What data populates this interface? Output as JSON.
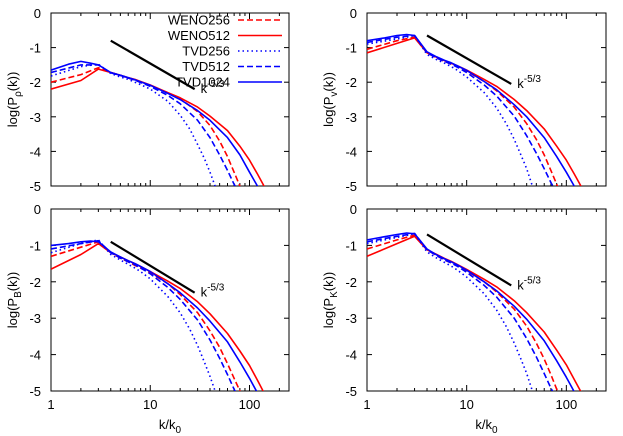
{
  "figure": {
    "legend_position": "top-right of top-left panel",
    "x_axis": {
      "scale": "log",
      "range": [
        1,
        250
      ],
      "ticks": [
        {
          "value": 1,
          "label": "1"
        },
        {
          "value": 10,
          "label": "10"
        },
        {
          "value": 100,
          "label": "100"
        }
      ],
      "label_main": "k/k",
      "label_sub": "0"
    },
    "y_axis": {
      "range": [
        -5,
        0
      ],
      "ticks": [
        0,
        -1,
        -2,
        -3,
        -4,
        -5
      ],
      "tick_labels": [
        "0",
        "-1",
        "-2",
        "-3",
        "-4",
        "-5"
      ]
    },
    "slope_label": {
      "base": "k",
      "exponent": "-5/3"
    },
    "grid": false
  },
  "chart_data": [
    {
      "type": "line",
      "panel": "top-left",
      "ylabel_main": "log(P",
      "ylabel_sub": "ρ",
      "ylabel_end": "(k))",
      "series": [
        {
          "name": "WENO256",
          "color": "#ff0000",
          "dash": "dashed",
          "x": [
            1,
            2,
            3,
            4,
            5,
            6,
            7,
            8,
            10,
            15,
            20,
            30,
            40,
            50,
            60,
            70,
            80,
            90
          ],
          "y": [
            -2.0,
            -1.78,
            -1.58,
            -1.72,
            -1.8,
            -1.88,
            -1.94,
            -2.0,
            -2.1,
            -2.3,
            -2.48,
            -2.85,
            -3.25,
            -3.7,
            -4.15,
            -4.6,
            -5.0,
            -5.3
          ]
        },
        {
          "name": "WENO512",
          "color": "#ff0000",
          "dash": "solid",
          "x": [
            1,
            2,
            3,
            4,
            5,
            6,
            7,
            8,
            10,
            15,
            20,
            30,
            40,
            60,
            80,
            100,
            120,
            140,
            155
          ],
          "y": [
            -2.2,
            -1.95,
            -1.62,
            -1.72,
            -1.8,
            -1.87,
            -1.92,
            -1.98,
            -2.08,
            -2.3,
            -2.45,
            -2.72,
            -2.98,
            -3.4,
            -3.85,
            -4.25,
            -4.65,
            -5.0,
            -5.2
          ]
        },
        {
          "name": "TVD256",
          "color": "#0000ff",
          "dash": "dotted",
          "x": [
            1,
            2,
            3,
            4,
            5,
            6,
            7,
            8,
            10,
            15,
            20,
            25,
            30,
            35,
            40,
            45,
            50
          ],
          "y": [
            -1.82,
            -1.55,
            -1.48,
            -1.75,
            -1.85,
            -1.92,
            -2.0,
            -2.07,
            -2.2,
            -2.55,
            -2.95,
            -3.35,
            -3.8,
            -4.2,
            -4.6,
            -5.0,
            -5.3
          ]
        },
        {
          "name": "TVD512",
          "color": "#0000ff",
          "dash": "dashed",
          "x": [
            1,
            2,
            3,
            4,
            5,
            6,
            7,
            8,
            10,
            15,
            20,
            30,
            40,
            50,
            60,
            70,
            80
          ],
          "y": [
            -1.72,
            -1.5,
            -1.5,
            -1.73,
            -1.8,
            -1.88,
            -1.94,
            -2.01,
            -2.12,
            -2.38,
            -2.62,
            -3.1,
            -3.6,
            -4.1,
            -4.55,
            -4.95,
            -5.2
          ]
        },
        {
          "name": "TVD1024",
          "color": "#0000ff",
          "dash": "solid",
          "x": [
            1,
            1.5,
            2,
            2.5,
            3,
            4,
            5,
            6,
            7,
            8,
            10,
            15,
            20,
            30,
            40,
            60,
            80,
            100,
            120,
            130
          ],
          "y": [
            -1.65,
            -1.48,
            -1.4,
            -1.45,
            -1.5,
            -1.72,
            -1.8,
            -1.87,
            -1.93,
            -1.99,
            -2.09,
            -2.32,
            -2.5,
            -2.82,
            -3.1,
            -3.6,
            -4.1,
            -4.6,
            -5.0,
            -5.2
          ]
        }
      ],
      "slope_line": {
        "x": [
          4,
          28
        ],
        "y": [
          -0.8,
          -2.2
        ]
      }
    },
    {
      "type": "line",
      "panel": "top-right",
      "ylabel_main": "log(P",
      "ylabel_sub": "v",
      "ylabel_end": "(k))",
      "series": [
        {
          "name": "WENO256",
          "color": "#ff0000",
          "dash": "dashed",
          "x": [
            1,
            2,
            3,
            4,
            5,
            6,
            7,
            8,
            10,
            15,
            20,
            30,
            40,
            50,
            60,
            70,
            80,
            90
          ],
          "y": [
            -1.05,
            -0.8,
            -0.7,
            -1.15,
            -1.3,
            -1.4,
            -1.48,
            -1.55,
            -1.68,
            -1.98,
            -2.25,
            -2.72,
            -3.2,
            -3.65,
            -4.1,
            -4.55,
            -4.95,
            -5.3
          ]
        },
        {
          "name": "WENO512",
          "color": "#ff0000",
          "dash": "solid",
          "x": [
            1,
            2,
            3,
            4,
            5,
            6,
            7,
            8,
            10,
            15,
            20,
            30,
            40,
            60,
            80,
            100,
            120,
            140,
            155
          ],
          "y": [
            -1.15,
            -0.88,
            -0.72,
            -1.15,
            -1.28,
            -1.38,
            -1.45,
            -1.52,
            -1.65,
            -1.92,
            -2.12,
            -2.5,
            -2.82,
            -3.35,
            -3.85,
            -4.25,
            -4.65,
            -5.0,
            -5.2
          ]
        },
        {
          "name": "TVD256",
          "color": "#0000ff",
          "dash": "dotted",
          "x": [
            1,
            2,
            3,
            4,
            5,
            6,
            7,
            8,
            10,
            15,
            20,
            25,
            30,
            35,
            40,
            45,
            50
          ],
          "y": [
            -0.9,
            -0.75,
            -0.65,
            -1.2,
            -1.35,
            -1.45,
            -1.55,
            -1.65,
            -1.85,
            -2.3,
            -2.75,
            -3.2,
            -3.65,
            -4.1,
            -4.5,
            -4.95,
            -5.25
          ]
        },
        {
          "name": "TVD512",
          "color": "#0000ff",
          "dash": "dashed",
          "x": [
            1,
            2,
            3,
            4,
            5,
            6,
            7,
            8,
            10,
            15,
            20,
            30,
            40,
            50,
            60,
            70,
            80
          ],
          "y": [
            -0.85,
            -0.7,
            -0.65,
            -1.15,
            -1.3,
            -1.4,
            -1.48,
            -1.56,
            -1.72,
            -2.08,
            -2.4,
            -2.98,
            -3.55,
            -4.05,
            -4.5,
            -4.9,
            -5.2
          ]
        },
        {
          "name": "TVD1024",
          "color": "#0000ff",
          "dash": "solid",
          "x": [
            1,
            1.5,
            2,
            2.5,
            3,
            4,
            5,
            6,
            7,
            8,
            10,
            15,
            20,
            30,
            40,
            60,
            80,
            100,
            120,
            130
          ],
          "y": [
            -0.8,
            -0.72,
            -0.65,
            -0.62,
            -0.65,
            -1.12,
            -1.27,
            -1.37,
            -1.44,
            -1.52,
            -1.66,
            -1.98,
            -2.22,
            -2.65,
            -3.0,
            -3.6,
            -4.15,
            -4.6,
            -5.0,
            -5.2
          ]
        }
      ],
      "slope_line": {
        "x": [
          4,
          28
        ],
        "y": [
          -0.65,
          -2.05
        ]
      }
    },
    {
      "type": "line",
      "panel": "bottom-left",
      "ylabel_main": "log(P",
      "ylabel_sub": "B",
      "ylabel_end": "(k))",
      "series": [
        {
          "name": "WENO256",
          "color": "#ff0000",
          "dash": "dashed",
          "x": [
            1,
            2,
            3,
            4,
            5,
            6,
            7,
            8,
            10,
            15,
            20,
            30,
            40,
            50,
            60,
            70,
            80,
            90
          ],
          "y": [
            -1.3,
            -1.05,
            -0.9,
            -1.2,
            -1.35,
            -1.45,
            -1.55,
            -1.62,
            -1.75,
            -2.05,
            -2.35,
            -2.85,
            -3.35,
            -3.8,
            -4.25,
            -4.65,
            -5.0,
            -5.3
          ]
        },
        {
          "name": "WENO512",
          "color": "#ff0000",
          "dash": "solid",
          "x": [
            1,
            2,
            3,
            4,
            5,
            6,
            7,
            8,
            10,
            15,
            20,
            30,
            40,
            60,
            80,
            100,
            120,
            140,
            155
          ],
          "y": [
            -1.65,
            -1.25,
            -0.95,
            -1.2,
            -1.32,
            -1.42,
            -1.5,
            -1.58,
            -1.72,
            -1.98,
            -2.18,
            -2.55,
            -2.88,
            -3.42,
            -3.9,
            -4.3,
            -4.7,
            -5.05,
            -5.25
          ]
        },
        {
          "name": "TVD256",
          "color": "#0000ff",
          "dash": "dotted",
          "x": [
            1,
            2,
            3,
            4,
            5,
            6,
            7,
            8,
            10,
            15,
            20,
            25,
            30,
            35,
            40,
            45,
            50
          ],
          "y": [
            -1.2,
            -0.95,
            -0.85,
            -1.25,
            -1.4,
            -1.52,
            -1.62,
            -1.72,
            -1.92,
            -2.4,
            -2.85,
            -3.3,
            -3.75,
            -4.2,
            -4.6,
            -5.0,
            -5.3
          ]
        },
        {
          "name": "TVD512",
          "color": "#0000ff",
          "dash": "dashed",
          "x": [
            1,
            2,
            3,
            4,
            5,
            6,
            7,
            8,
            10,
            15,
            20,
            30,
            40,
            50,
            60,
            70,
            80
          ],
          "y": [
            -1.1,
            -0.95,
            -0.87,
            -1.2,
            -1.35,
            -1.45,
            -1.53,
            -1.62,
            -1.78,
            -2.15,
            -2.48,
            -3.05,
            -3.6,
            -4.1,
            -4.55,
            -4.95,
            -5.25
          ]
        },
        {
          "name": "TVD1024",
          "color": "#0000ff",
          "dash": "solid",
          "x": [
            1,
            1.5,
            2,
            2.5,
            3,
            4,
            5,
            6,
            7,
            8,
            10,
            15,
            20,
            30,
            40,
            60,
            80,
            100,
            120,
            130
          ],
          "y": [
            -1.0,
            -0.95,
            -0.9,
            -0.88,
            -0.9,
            -1.18,
            -1.32,
            -1.42,
            -1.5,
            -1.58,
            -1.72,
            -2.05,
            -2.3,
            -2.72,
            -3.08,
            -3.65,
            -4.2,
            -4.65,
            -5.05,
            -5.25
          ]
        }
      ],
      "slope_line": {
        "x": [
          4,
          28
        ],
        "y": [
          -0.9,
          -2.3
        ]
      }
    },
    {
      "type": "line",
      "panel": "bottom-right",
      "ylabel_main": "log(P",
      "ylabel_sub": "K",
      "ylabel_end": "(k))",
      "series": [
        {
          "name": "WENO256",
          "color": "#ff0000",
          "dash": "dashed",
          "x": [
            1,
            2,
            3,
            4,
            5,
            6,
            7,
            8,
            10,
            15,
            20,
            30,
            40,
            50,
            60,
            70,
            80,
            90
          ],
          "y": [
            -1.1,
            -0.85,
            -0.72,
            -1.12,
            -1.28,
            -1.4,
            -1.48,
            -1.56,
            -1.7,
            -2.0,
            -2.28,
            -2.75,
            -3.22,
            -3.68,
            -4.12,
            -4.55,
            -4.95,
            -5.3
          ]
        },
        {
          "name": "WENO512",
          "color": "#ff0000",
          "dash": "solid",
          "x": [
            1,
            2,
            3,
            4,
            5,
            6,
            7,
            8,
            10,
            15,
            20,
            30,
            40,
            60,
            80,
            100,
            120,
            140,
            155
          ],
          "y": [
            -1.3,
            -0.95,
            -0.75,
            -1.12,
            -1.25,
            -1.36,
            -1.44,
            -1.52,
            -1.66,
            -1.93,
            -2.14,
            -2.52,
            -2.85,
            -3.38,
            -3.88,
            -4.28,
            -4.68,
            -5.02,
            -5.22
          ]
        },
        {
          "name": "TVD256",
          "color": "#0000ff",
          "dash": "dotted",
          "x": [
            1,
            2,
            3,
            4,
            5,
            6,
            7,
            8,
            10,
            15,
            20,
            25,
            30,
            35,
            40,
            45,
            50
          ],
          "y": [
            -0.95,
            -0.78,
            -0.68,
            -1.18,
            -1.35,
            -1.47,
            -1.57,
            -1.67,
            -1.87,
            -2.33,
            -2.78,
            -3.23,
            -3.68,
            -4.12,
            -4.52,
            -4.95,
            -5.25
          ]
        },
        {
          "name": "TVD512",
          "color": "#0000ff",
          "dash": "dashed",
          "x": [
            1,
            2,
            3,
            4,
            5,
            6,
            7,
            8,
            10,
            15,
            20,
            30,
            40,
            50,
            60,
            70,
            80
          ],
          "y": [
            -0.9,
            -0.75,
            -0.67,
            -1.12,
            -1.28,
            -1.4,
            -1.48,
            -1.57,
            -1.74,
            -2.1,
            -2.42,
            -3.0,
            -3.56,
            -4.06,
            -4.52,
            -4.92,
            -5.22
          ]
        },
        {
          "name": "TVD1024",
          "color": "#0000ff",
          "dash": "solid",
          "x": [
            1,
            1.5,
            2,
            2.5,
            3,
            4,
            5,
            6,
            7,
            8,
            10,
            15,
            20,
            30,
            40,
            60,
            80,
            100,
            120,
            130
          ],
          "y": [
            -0.85,
            -0.76,
            -0.7,
            -0.66,
            -0.68,
            -1.1,
            -1.26,
            -1.37,
            -1.45,
            -1.53,
            -1.68,
            -2.0,
            -2.25,
            -2.67,
            -3.03,
            -3.62,
            -4.17,
            -4.62,
            -5.02,
            -5.22
          ]
        }
      ],
      "slope_line": {
        "x": [
          4,
          28
        ],
        "y": [
          -0.7,
          -2.1
        ]
      }
    }
  ]
}
